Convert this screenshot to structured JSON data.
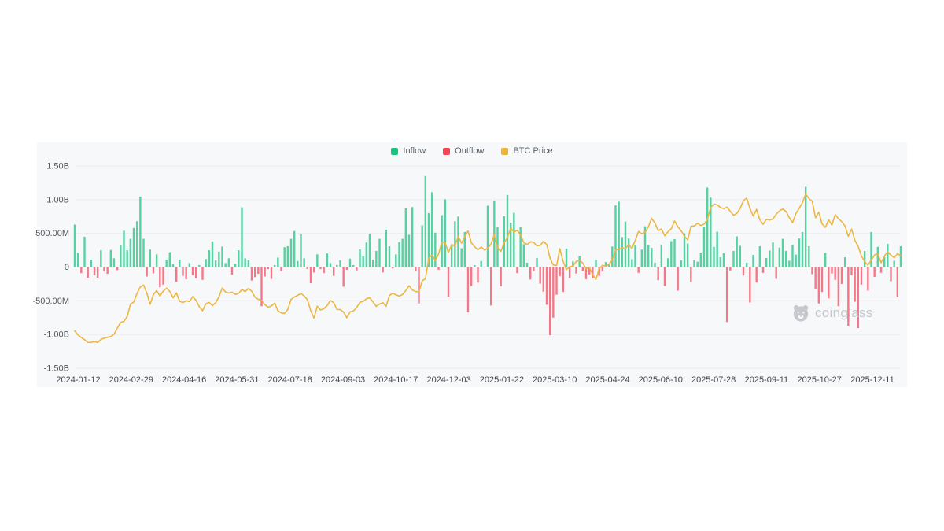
{
  "legend": {
    "items": [
      {
        "label": "Inflow",
        "color": "#18c27f"
      },
      {
        "label": "Outflow",
        "color": "#f2465a"
      },
      {
        "label": "BTC Price",
        "color": "#e9b33c"
      }
    ]
  },
  "watermark": {
    "brand": "coinglass"
  },
  "chart_data": {
    "type": "bar",
    "subtype": "daily net flow bars with BTC price line overlay",
    "grid": true,
    "legend_position": "top",
    "x_tick_labels": [
      "2024-01-12",
      "2024-02-29",
      "2024-04-16",
      "2024-05-31",
      "2024-07-18",
      "2024-09-03",
      "2024-10-17",
      "2024-12-03",
      "2025-01-22",
      "2025-03-10",
      "2025-04-24",
      "2025-06-10",
      "2025-07-28",
      "2025-09-11",
      "2025-10-27",
      "2025-12-11"
    ],
    "y_tick_labels": [
      "1.50B",
      "1.00B",
      "500.00M",
      "0",
      "-500.00M",
      "-1.00B",
      "-1.50B"
    ],
    "y_tick_values_millions": [
      1500,
      1000,
      500,
      0,
      -500,
      -1000,
      -1500
    ],
    "ylim_millions": [
      -1500,
      1500
    ],
    "price_axis_estimated_range_thoususd": [
      25,
      142
    ],
    "series": [
      {
        "name": "Inflow/Outflow",
        "type": "bar",
        "unit": "USD millions (positive = Inflow, negative = Outflow)",
        "values": [
          630,
          210,
          -90,
          450,
          -160,
          110,
          -120,
          -158,
          250,
          -60,
          -100,
          255,
          130,
          -45,
          320,
          540,
          250,
          420,
          580,
          680,
          1045,
          420,
          -140,
          260,
          -94,
          190,
          -300,
          -260,
          110,
          220,
          40,
          -220,
          110,
          -130,
          -180,
          60,
          -120,
          -170,
          30,
          -190,
          120,
          250,
          380,
          100,
          230,
          305,
          60,
          130,
          -110,
          45,
          250,
          886,
          130,
          100,
          -200,
          -150,
          -100,
          -580,
          -140,
          -30,
          -175,
          30,
          140,
          -60,
          295,
          310,
          420,
          534,
          90,
          485,
          130,
          -30,
          -240,
          -80,
          190,
          -30,
          -90,
          202,
          60,
          -130,
          30,
          100,
          -290,
          -40,
          125,
          30,
          -50,
          263,
          160,
          365,
          494,
          110,
          240,
          420,
          -80,
          555,
          310,
          -20,
          190,
          370,
          420,
          870,
          480,
          890,
          -55,
          -540,
          620,
          1350,
          800,
          1110,
          510,
          -40,
          770,
          1005,
          -440,
          340,
          680,
          750,
          280,
          520,
          -670,
          -280,
          30,
          -230,
          90,
          5,
          910,
          -570,
          980,
          595,
          -285,
          755,
          1070,
          660,
          805,
          -90,
          590,
          340,
          65,
          -185,
          -60,
          135,
          -245,
          -365,
          -560,
          -1010,
          -750,
          -410,
          -135,
          -370,
          275,
          -165,
          85,
          -95,
          165,
          -60,
          -180,
          -110,
          -170,
          105,
          -130,
          -65,
          75,
          35,
          305,
          915,
          970,
          445,
          675,
          425,
          115,
          320,
          -85,
          260,
          605,
          330,
          285,
          65,
          -195,
          330,
          -280,
          130,
          385,
          415,
          -350,
          100,
          500,
          350,
          -220,
          105,
          80,
          215,
          600,
          1180,
          1030,
          300,
          525,
          145,
          205,
          -815,
          -50,
          240,
          455,
          315,
          -125,
          65,
          -525,
          180,
          -230,
          310,
          -85,
          135,
          245,
          365,
          -175,
          290,
          420,
          240,
          95,
          330,
          185,
          425,
          520,
          1190,
          310,
          -105,
          -330,
          -540,
          -370,
          205,
          -465,
          -95,
          -190,
          -580,
          -250,
          145,
          -870,
          -120,
          -515,
          -905,
          -260,
          240,
          -350,
          520,
          -145,
          300,
          -85,
          150,
          345,
          -210,
          95,
          -440,
          310
        ]
      },
      {
        "name": "BTC Price",
        "type": "line",
        "unit": "USD thousands (estimated from overlay)",
        "values": [
          46.6,
          44.2,
          42.8,
          41.5,
          40.0,
          39.9,
          40.3,
          39.9,
          41.6,
          42.4,
          42.9,
          43.3,
          44.6,
          48.2,
          51.5,
          52.1,
          54.9,
          62.0,
          63.2,
          68.3,
          72.0,
          73.1,
          68.4,
          61.9,
          67.6,
          69.9,
          66.8,
          69.6,
          71.3,
          69.4,
          65.7,
          68.5,
          63.8,
          62.9,
          64.0,
          63.5,
          66.4,
          64.3,
          60.6,
          58.3,
          62.3,
          63.1,
          61.2,
          62.9,
          66.2,
          71.4,
          69.1,
          68.5,
          69.0,
          67.7,
          68.3,
          70.5,
          69.3,
          71.1,
          69.5,
          66.0,
          64.9,
          64.2,
          61.8,
          60.3,
          61.0,
          62.7,
          58.2,
          57.0,
          56.7,
          58.9,
          64.8,
          66.2,
          67.1,
          68.2,
          66.8,
          64.6,
          58.2,
          54.0,
          60.9,
          58.7,
          59.4,
          61.2,
          64.1,
          62.9,
          59.0,
          58.9,
          57.5,
          54.2,
          57.6,
          58.1,
          60.0,
          63.2,
          63.6,
          65.2,
          65.8,
          63.3,
          60.8,
          62.1,
          62.9,
          60.8,
          67.0,
          68.4,
          67.4,
          66.7,
          67.6,
          69.9,
          72.7,
          70.2,
          69.4,
          69.0,
          75.6,
          76.7,
          88.7,
          90.5,
          87.3,
          91.0,
          98.0,
          97.7,
          91.9,
          96.4,
          95.8,
          101.2,
          97.3,
          101.1,
          104.4,
          97.5,
          95.3,
          93.5,
          95.2,
          93.4,
          94.4,
          96.9,
          102.2,
          94.7,
          92.5,
          97.5,
          100.5,
          106.1,
          103.7,
          104.8,
          102.1,
          97.7,
          96.6,
          98.1,
          97.9,
          95.8,
          96.1,
          98.3,
          96.6,
          88.7,
          84.7,
          84.4,
          94.2,
          86.8,
          82.1,
          83.7,
          84.0,
          86.8,
          87.5,
          85.8,
          82.5,
          83.2,
          79.2,
          76.3,
          82.6,
          84.5,
          84.0,
          85.2,
          87.5,
          93.4,
          93.9,
          94.7,
          94.2,
          96.5,
          94.3,
          99.0,
          104.1,
          102.8,
          103.5,
          106.8,
          111.7,
          109.0,
          104.6,
          105.6,
          101.6,
          104.0,
          105.7,
          110.2,
          106.8,
          104.6,
          101.4,
          99.2,
          107.1,
          107.3,
          108.9,
          107.6,
          108.3,
          111.0,
          117.9,
          119.9,
          119.5,
          118.0,
          117.3,
          118.2,
          115.8,
          113.4,
          114.6,
          117.4,
          121.9,
          123.4,
          117.4,
          113.0,
          116.9,
          111.0,
          108.2,
          111.2,
          110.7,
          111.3,
          114.1,
          116.0,
          117.1,
          115.7,
          112.1,
          109.2,
          114.4,
          117.5,
          120.7,
          125.9,
          123.2,
          121.5,
          112.0,
          115.3,
          108.5,
          106.5,
          110.9,
          107.8,
          113.9,
          111.5,
          109.8,
          107.3,
          101.3,
          105.5,
          99.0,
          95.6,
          89.9,
          86.6,
          84.6,
          87.6,
          90.5,
          91.3,
          86.0,
          89.8,
          92.5,
          90.4,
          88.9,
          91.2,
          90.1
        ]
      }
    ]
  },
  "colors": {
    "inflow": "#18c27f",
    "outflow": "#f2465a",
    "btc_price_line": "#edb640",
    "card_background": "#f7f8f9",
    "gridline": "#ececef",
    "axis_label": "#55585f"
  }
}
